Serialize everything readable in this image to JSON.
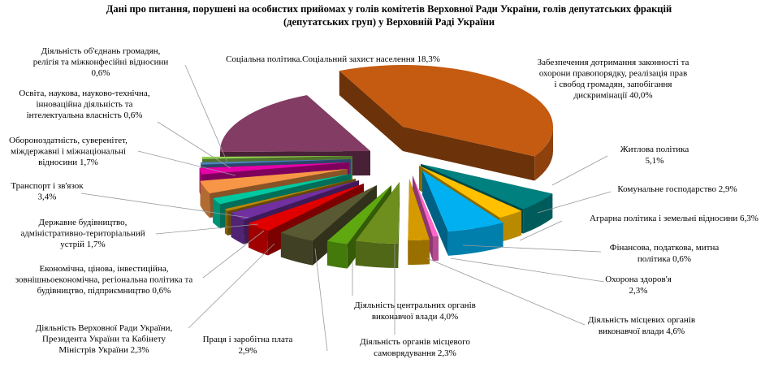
{
  "chart_data": {
    "type": "pie",
    "title_lines": [
      "Дані про питання, порушені на особистих прийомах у голів комітетів Верховної Ради України, голів депутатських фракцій",
      "(депутатських груп) у Верховній Раді України"
    ],
    "slices": [
      {
        "label_lines": [
          "Забезпечення дотримання законності та",
          "охорони правопорядку, реалізація прав",
          "і свобод громадян, запобігання",
          "дискримінації  40,0%"
        ],
        "value": 40.0,
        "color": "#C55A11"
      },
      {
        "label_lines": [
          "Житлова політика",
          "5,1%"
        ],
        "value": 5.1,
        "color": "#00807F"
      },
      {
        "label_lines": [
          "Комунальне господарство 2,9%"
        ],
        "value": 2.9,
        "color": "#FFC000"
      },
      {
        "label_lines": [
          "Аграрна політика і земельні відносини  6,3%"
        ],
        "value": 6.3,
        "color": "#00B0F0"
      },
      {
        "label_lines": [
          "Фінансова,  податкова, митна",
          "політика  0,6%"
        ],
        "value": 0.6,
        "color": "#FF66CC"
      },
      {
        "label_lines": [
          "Охорона здоров'я",
          "2,3%"
        ],
        "value": 2.3,
        "color": "#D49A00"
      },
      {
        "label_lines": [
          "Діяльність місцевих  органів",
          "виконавчої влади 4,6%"
        ],
        "value": 4.6,
        "color": "#6E8F1E"
      },
      {
        "label_lines": [
          "Діяльність органів місцевого",
          "самоврядування 2,3%"
        ],
        "value": 2.3,
        "color": "#5FA80F"
      },
      {
        "label_lines": [
          "Діяльність центральних органів",
          "виконавчої влади 4,0%"
        ],
        "value": 4.0,
        "color": "#595933"
      },
      {
        "label_lines": [
          "Праця і заробітна плата",
          "2,9%"
        ],
        "value": 2.9,
        "color": "#E00000"
      },
      {
        "label_lines": [
          "Діяльність Верховної Ради України,",
          "Президента України та Кабінету",
          "Міністрів України 2,3%"
        ],
        "value": 2.3,
        "color": "#7030A0"
      },
      {
        "label_lines": [
          "Економічна, цінова, інвестиційна,",
          "зовнішньоекономічна,  регіональна політика та",
          "будівництво, підприємництво  0,6%"
        ],
        "value": 0.6,
        "color": "#B8860B"
      },
      {
        "label_lines": [
          "Державне будівництво,",
          "адміністративно-територіальний",
          "устрій 1,7%"
        ],
        "value": 1.7,
        "color": "#00C8A0"
      },
      {
        "label_lines": [
          "Транспорт і зв'язок",
          "3,4%"
        ],
        "value": 3.4,
        "color": "#F79646"
      },
      {
        "label_lines": [
          "Обороноздатність, суверенітет,",
          "міждержавні  і  міжнаціональні",
          "відносини  1,7%"
        ],
        "value": 1.7,
        "color": "#E600A8"
      },
      {
        "label_lines": [
          "Освіта, наукова, науково-технічна,",
          "інноваційна діяльність та",
          "інтелектуальна власність 0,6%"
        ],
        "value": 0.6,
        "color": "#4F81BD"
      },
      {
        "label_lines": [
          "Діяльність об'єднань громадян,",
          "релігія та міжконфесійні  відносини",
          "0,6%"
        ],
        "value": 0.6,
        "color": "#92D050"
      },
      {
        "label_lines": [
          "Соціальна політика.Соціальний  захист  населення 18,3%"
        ],
        "value": 18.3,
        "color": "#833C63"
      }
    ]
  }
}
